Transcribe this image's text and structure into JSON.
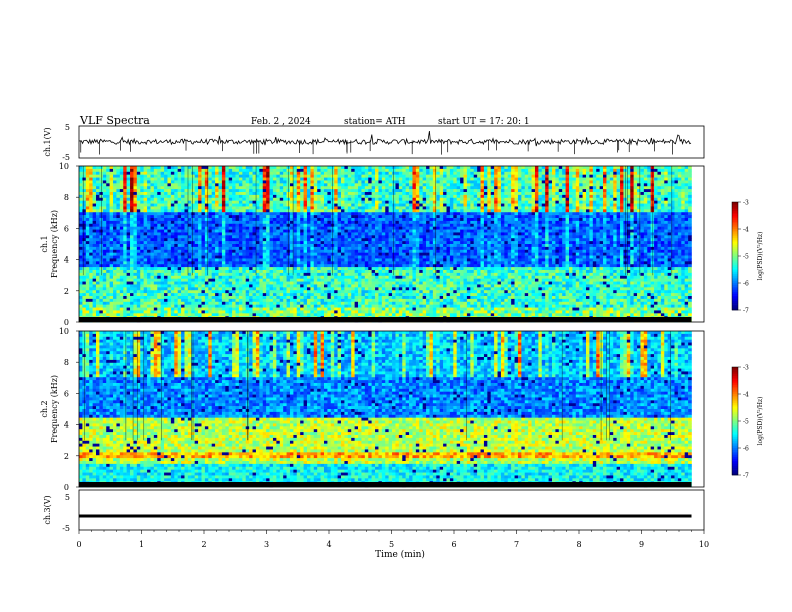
{
  "header": {
    "title": "VLF  Spectra",
    "date": "Feb. 2  , 2024",
    "station": "station= ATH",
    "start": "start  UT  =    17: 20: 1"
  },
  "chart_data": [
    {
      "type": "line",
      "panel": "ch1-waveform",
      "ylabel": "ch.1(V)",
      "ylim": [
        -5,
        5
      ],
      "yticks": [
        "5",
        "-5"
      ],
      "baseline_v": 0.1,
      "noise_amplitude_v": 0.8
    },
    {
      "type": "heatmap",
      "panel": "ch1-spectrogram",
      "ylabel_top": "ch.1",
      "ylabel": "Frequency  (kHz)",
      "ylim": [
        0,
        10
      ],
      "yticks": [
        "0",
        "2",
        "4",
        "6",
        "8",
        "10"
      ],
      "xlim": [
        0,
        10
      ],
      "color_scale": "jet",
      "zlim": [
        -7,
        -3
      ],
      "zticks": [
        "-3",
        "-4",
        "-5",
        "-6",
        "-7"
      ],
      "zlabel": "log(PSD)(V²/Hz)"
    },
    {
      "type": "heatmap",
      "panel": "ch2-spectrogram",
      "ylabel_top": "ch.2",
      "ylabel": "Frequency  (kHz)",
      "ylim": [
        0,
        10
      ],
      "yticks": [
        "0",
        "2",
        "4",
        "6",
        "8",
        "10"
      ],
      "xlim": [
        0,
        10
      ],
      "color_scale": "jet",
      "zlim": [
        -7,
        -3
      ],
      "zticks": [
        "-3",
        "-4",
        "-5",
        "-6",
        "-7"
      ],
      "zlabel": "log(PSD)(V²/Hz)"
    },
    {
      "type": "line",
      "panel": "ch3-waveform",
      "ylabel": "ch.3(V)",
      "ylim": [
        -5,
        5
      ],
      "yticks": [
        "5",
        "-5"
      ],
      "baseline_v": -1.5,
      "x": [
        0,
        9.8
      ],
      "values": [
        -1.5,
        -1.5
      ]
    }
  ],
  "xaxis": {
    "label": "Time  (min)",
    "ticks": [
      "0",
      "1",
      "2",
      "3",
      "4",
      "5",
      "6",
      "7",
      "8",
      "9",
      "10"
    ],
    "xlim": [
      0,
      10
    ],
    "data_end_min": 9.8
  }
}
